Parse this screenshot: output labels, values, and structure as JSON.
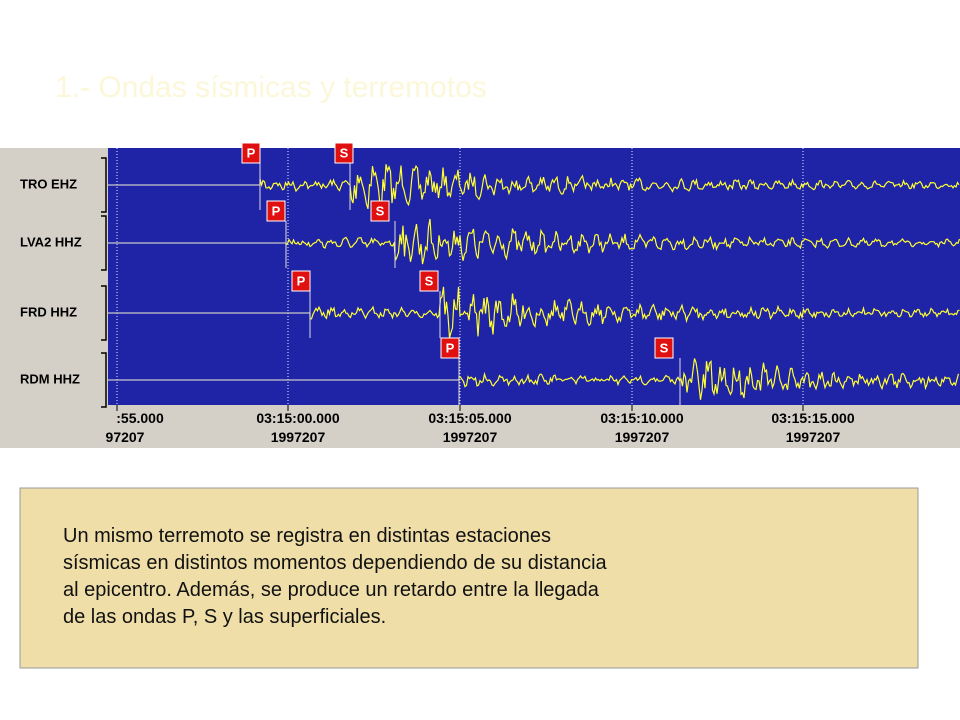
{
  "title": "1.- Ondas sísmicas y terremotos",
  "seismogram": {
    "stations": [
      {
        "label": "TRO EHZ",
        "p": "P",
        "s": "S"
      },
      {
        "label": "LVA2 HHZ",
        "p": "P",
        "s": "S"
      },
      {
        "label": "FRD HHZ",
        "p": "P",
        "s": "S"
      },
      {
        "label": "RDM HHZ",
        "p": "P",
        "s": "S"
      }
    ],
    "time_axis": [
      {
        "time": ":55.000",
        "date": "97207"
      },
      {
        "time": "03:15:00.000",
        "date": "1997207"
      },
      {
        "time": "03:15:05.000",
        "date": "1997207"
      },
      {
        "time": "03:15:10.000",
        "date": "1997207"
      },
      {
        "time": "03:15:15.000",
        "date": "1997207"
      }
    ]
  },
  "text": {
    "lines": [
      "Un mismo terremoto se registra en distintas estaciones",
      "sísmicas en distintos momentos dependiendo de su distancia",
      "al epicentro. Además, se produce un retardo entre la llegada",
      "de las ondas P, S y las superficiales."
    ]
  }
}
